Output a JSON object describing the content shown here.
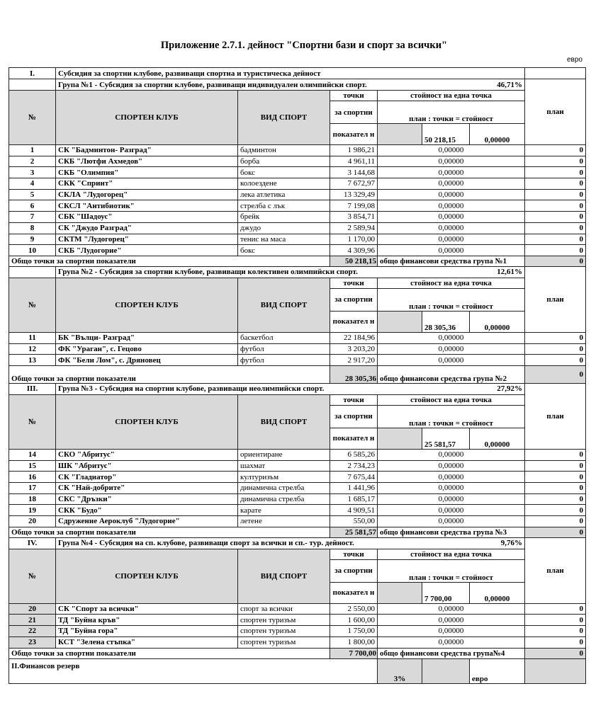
{
  "title": "Приложение 2.7.1. дейност \"Спортни бази и спорт за всички\"",
  "unit": "евро",
  "section1": {
    "num": "I.",
    "label": "Субсидия за спортни клубове, развиващи спортна и туристическа дейност"
  },
  "headers": {
    "num": "№",
    "club": "СПОРТЕН КЛУБ",
    "sport": "ВИД СПОРТ",
    "points_a": "точки",
    "points_b": "за спортни",
    "points_c": "показател н",
    "value_title": "стойност на една точка",
    "formula": "план : точки = стойност",
    "plan": "план"
  },
  "total_label": "Общо точки за спортни показатели",
  "groups": [
    {
      "num": "",
      "title": "Група №1 - Субсидия за спортни клубове, развиващи индивидуален олимпийски спорт.",
      "percent": "46,71%",
      "header_total": "50 218,15",
      "header_value": "0,00000",
      "rows": [
        {
          "n": "1",
          "club": "СК \"Бадминтон- Разград\"",
          "sport": "бадминтон",
          "points": "1 986,21",
          "value": "0,00000",
          "plan": "0"
        },
        {
          "n": "2",
          "club": "СКБ \"Лютфи Ахмедов\"",
          "sport": "борба",
          "points": "4 961,11",
          "value": "0,00000",
          "plan": "0"
        },
        {
          "n": "3",
          "club": "СКБ \"Олимпия\"",
          "sport": "бокс",
          "points": "3 144,68",
          "value": "0,00000",
          "plan": "0"
        },
        {
          "n": "4",
          "club": "СКК \"Спринт\"",
          "sport": "колоездене",
          "points": "7 672,97",
          "value": "0,00000",
          "plan": "0"
        },
        {
          "n": "5",
          "club": "СКЛА \"Лудогорец\"",
          "sport": "лека атлетика",
          "points": "13 329,49",
          "value": "0,00000",
          "plan": "0"
        },
        {
          "n": "6",
          "club": "СКСЛ \"Антибиотик\"",
          "sport": "стрелба с лък",
          "points": "7 199,08",
          "value": "0,00000",
          "plan": "0"
        },
        {
          "n": "7",
          "club": "СБК \"Шадоус\"",
          "sport": "брейк",
          "points": "3 854,71",
          "value": "0,00000",
          "plan": "0"
        },
        {
          "n": "8",
          "club": "СК \"Джудо Разград\"",
          "sport": "джудо",
          "points": "2 589,94",
          "value": "0,00000",
          "plan": "0"
        },
        {
          "n": "9",
          "club": "СКТМ \"Лудогорец\"",
          "sport": "тенис на маса",
          "points": "1 170,00",
          "value": "0,00000",
          "plan": "0"
        },
        {
          "n": "10",
          "club": "СКБ \"Лудогорие\"",
          "sport": "бокс",
          "points": "4 309,96",
          "value": "0,00000",
          "plan": "0"
        }
      ],
      "total_points": "50 218,15",
      "total_funds_label": "общо финансови средства група №1",
      "total_plan": "0"
    },
    {
      "num": "",
      "title": "Група №2 - Субсидия за спортни клубове, развиващи колективен олимпийски спорт.",
      "percent": "12,61%",
      "header_total": "28 305,36",
      "header_value": "0,00000",
      "rows": [
        {
          "n": "11",
          "club": "БК \"Вълци- Разград\"",
          "sport": "баскетбол",
          "points": "22 184,96",
          "value": "0,00000",
          "plan": "0"
        },
        {
          "n": "12",
          "club": "ФК \"Ураган\", с. Гецово",
          "sport": "футбол",
          "points": "3 203,20",
          "value": "0,00000",
          "plan": "0"
        },
        {
          "n": "13",
          "club": "ФК \"Бели Лом\", с. Дряновец",
          "sport": "футбол",
          "points": "2 917,20",
          "value": "0,00000",
          "plan": "0"
        }
      ],
      "total_points": "28 305,36",
      "total_funds_label": "общо финансови средства група №2",
      "total_plan": "0"
    },
    {
      "num": "III.",
      "title": "Група №3 - Субсидия на спортни клубове, развиващи неолимпийски спорт.",
      "percent": "27,92%",
      "header_total": "25 581,57",
      "header_value": "0,00000",
      "rows": [
        {
          "n": "14",
          "club": "СКО \"Абритус\"",
          "sport": "ориентиране",
          "points": "6 585,26",
          "value": "0,00000",
          "plan": "0"
        },
        {
          "n": "15",
          "club": "ШК \"Абритус\"",
          "sport": "шахмат",
          "points": "2 734,23",
          "value": "0,00000",
          "plan": "0"
        },
        {
          "n": "16",
          "club": "СК \"Гладиатор\"",
          "sport": "културизъм",
          "points": "7 675,44",
          "value": "0,00000",
          "plan": "0"
        },
        {
          "n": "17",
          "club": "СК \"Най-добрите\"",
          "sport": "динамична стрелба",
          "points": "1 441,96",
          "value": "0,00000",
          "plan": "0"
        },
        {
          "n": "18",
          "club": "СКС \"Дръзки\"",
          "sport": "динамична стрелба",
          "points": "1 685,17",
          "value": "0,00000",
          "plan": "0"
        },
        {
          "n": "19",
          "club": "СКК \"Будо\"",
          "sport": "карате",
          "points": "4 909,51",
          "value": "0,00000",
          "plan": "0"
        },
        {
          "n": "20",
          "club": "Сдружение Аероклуб \"Лудогорие\"",
          "sport": "летене",
          "points": "550,00",
          "value": "0,00000",
          "plan": "0"
        }
      ],
      "total_points": "25 581,57",
      "total_funds_label": "общо финансови средства група №3",
      "total_plan": "0"
    },
    {
      "num": "IV.",
      "title": "Група №4 - Субсидия на сп. клубове, развиващи спорт за всички и сп.- тур. дейност.",
      "percent": "9,76%",
      "header_total": "7 700,00",
      "header_value": "0,00000",
      "rows": [
        {
          "n": "20",
          "club": "СК \"Спорт за всички\"",
          "sport": "спорт за всички",
          "points": "2 550,00",
          "value": "0,00000",
          "plan": "0"
        },
        {
          "n": "21",
          "club": "ТД \"Буйна кръв\"",
          "sport": "спортен туризъм",
          "points": "1 600,00",
          "value": "0,00000",
          "plan": "0"
        },
        {
          "n": "22",
          "club": "ТД \"Буйна гора\"",
          "sport": "спортен туризъм",
          "points": "1 750,00",
          "value": "0,00000",
          "plan": "0"
        },
        {
          "n": "23",
          "club": "КСТ \"Зелена стъпка\"",
          "sport": "спортен туризъм",
          "points": "1 800,00",
          "value": "0,00000",
          "plan": "0"
        }
      ],
      "total_points": "7 700,00",
      "total_funds_label": "общо финансови средства група№4",
      "total_plan": "0"
    }
  ],
  "reserve": {
    "label": "II.Финансов резерв",
    "percent": "3%",
    "unit": "евро"
  }
}
